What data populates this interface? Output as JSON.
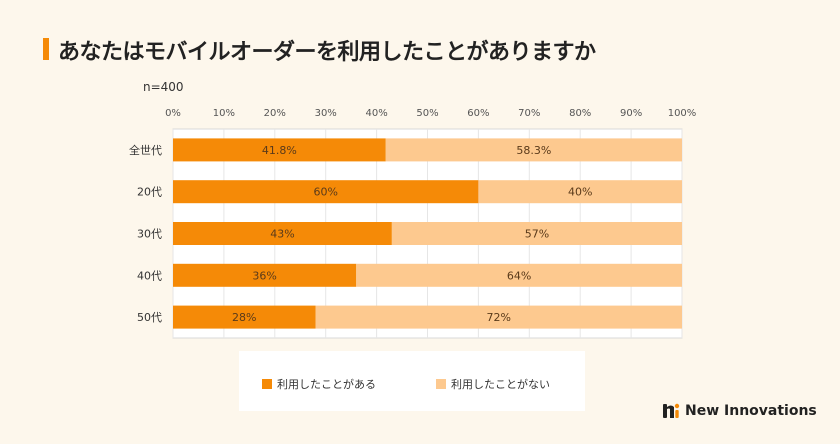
{
  "header": {
    "title": "あなたはモバイルオーダーを利用したことがありますか"
  },
  "sample_note": "n=400",
  "legend": {
    "items": [
      {
        "label": "利用したことがある",
        "color": "#f58a07"
      },
      {
        "label": "利用したことがない",
        "color": "#fdc98f"
      }
    ]
  },
  "brand": {
    "name": "New Innovations",
    "icon": "ni-logo-icon"
  },
  "chart_data": {
    "type": "bar",
    "orientation": "horizontal",
    "stacked": true,
    "categories": [
      "全世代",
      "20代",
      "30代",
      "40代",
      "50代"
    ],
    "series": [
      {
        "name": "利用したことがある",
        "values": [
          41.8,
          60,
          43,
          36,
          28
        ],
        "labels": [
          "41.8%",
          "60%",
          "43%",
          "36%",
          "28%"
        ],
        "color": "#f58a07"
      },
      {
        "name": "利用したことがない",
        "values": [
          58.3,
          40,
          57,
          64,
          72
        ],
        "labels": [
          "58.3%",
          "40%",
          "57%",
          "64%",
          "72%"
        ],
        "color": "#fdc98f"
      }
    ],
    "xlim": [
      0,
      100
    ],
    "x_ticks": [
      "0%",
      "10%",
      "20%",
      "30%",
      "40%",
      "50%",
      "60%",
      "70%",
      "80%",
      "90%",
      "100%"
    ],
    "grid": true,
    "legend_position": "bottom"
  }
}
